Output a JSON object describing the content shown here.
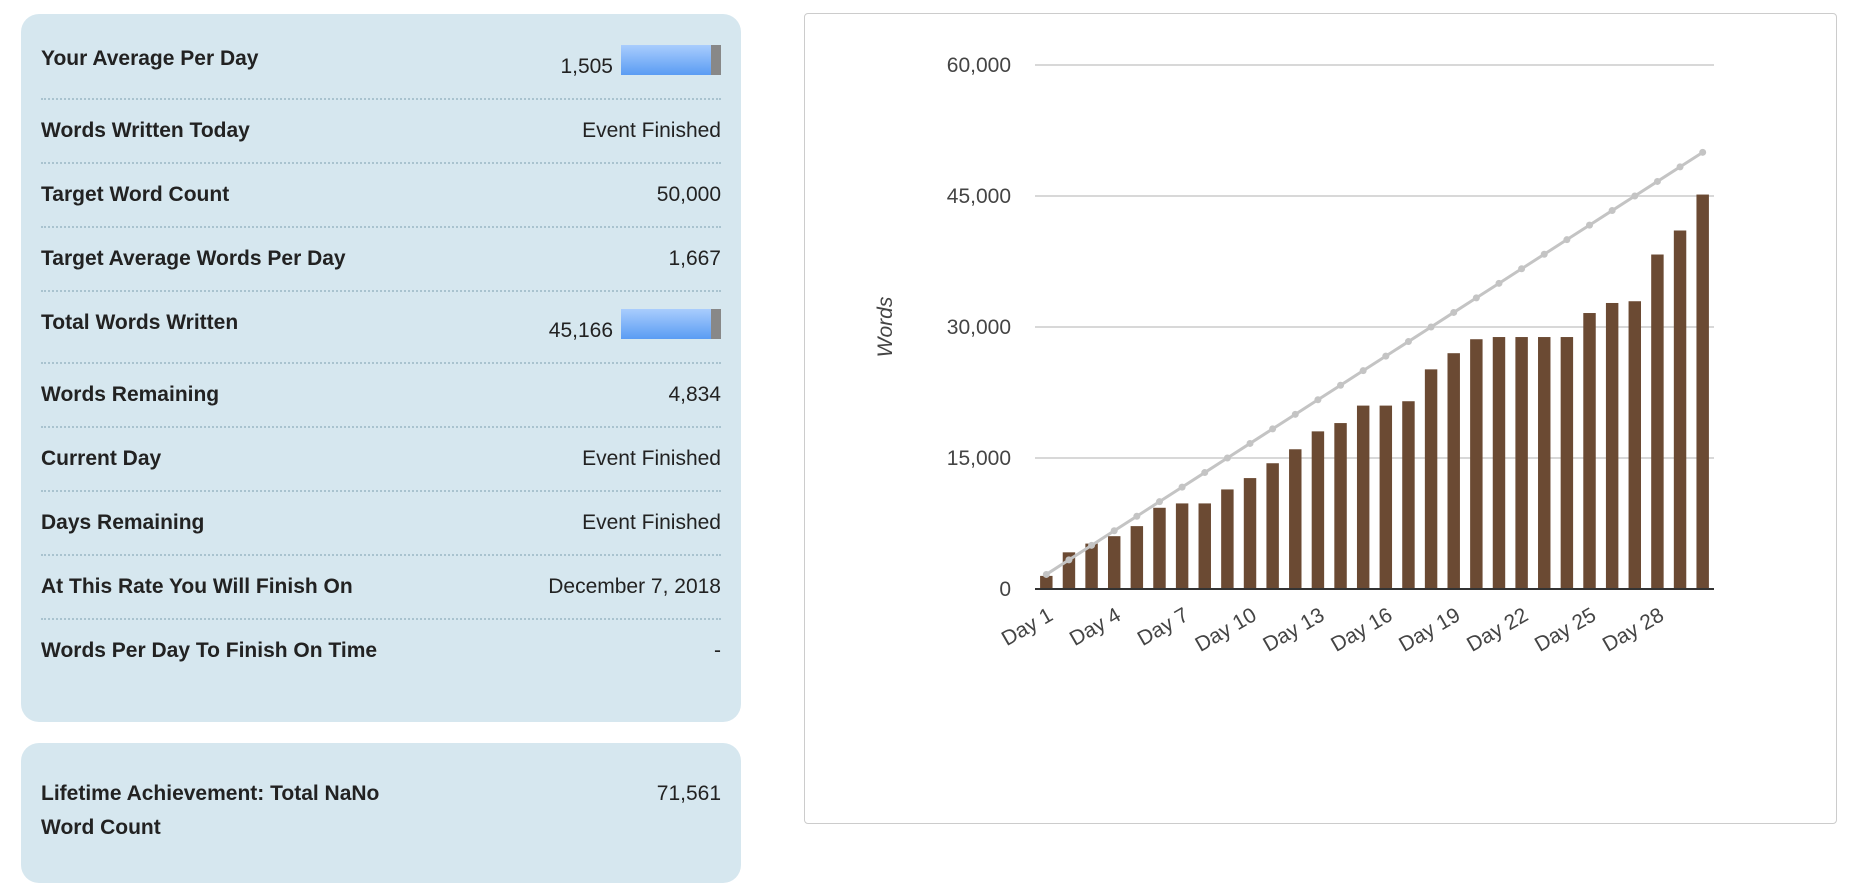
{
  "stats": {
    "rows": [
      {
        "label": "Your Average Per Day",
        "value": "1,505",
        "bar": true
      },
      {
        "label": "Words Written Today",
        "value": "Event Finished"
      },
      {
        "label": "Target Word Count",
        "value": "50,000"
      },
      {
        "label": "Target Average Words Per Day",
        "value": "1,667"
      },
      {
        "label": "Total Words Written",
        "value": "45,166",
        "bar": true
      },
      {
        "label": "Words Remaining",
        "value": "4,834"
      },
      {
        "label": "Current Day",
        "value": "Event Finished"
      },
      {
        "label": "Days Remaining",
        "value": "Event Finished"
      },
      {
        "label": "At This Rate You Will Finish On",
        "value": "December 7, 2018"
      },
      {
        "label": "Words Per Day To Finish On Time",
        "value": "-"
      }
    ]
  },
  "lifetime": {
    "label": "Lifetime Achievement: Total NaNo Word Count",
    "value": "71,561"
  },
  "chart_data": {
    "type": "bar",
    "title": "",
    "xlabel": "",
    "ylabel": "Words",
    "ylim": [
      0,
      60000
    ],
    "yticks": [
      "0",
      "15,000",
      "30,000",
      "45,000",
      "60,000"
    ],
    "ytick_values": [
      0,
      15000,
      30000,
      45000,
      60000
    ],
    "grid": true,
    "categories": [
      "Day 1",
      "Day 2",
      "Day 3",
      "Day 4",
      "Day 5",
      "Day 6",
      "Day 7",
      "Day 8",
      "Day 9",
      "Day 10",
      "Day 11",
      "Day 12",
      "Day 13",
      "Day 14",
      "Day 15",
      "Day 16",
      "Day 17",
      "Day 18",
      "Day 19",
      "Day 20",
      "Day 21",
      "Day 22",
      "Day 23",
      "Day 24",
      "Day 25",
      "Day 26",
      "Day 27",
      "Day 28",
      "Day 29",
      "Day 30"
    ],
    "xtick_labels_shown": [
      "Day 1",
      "Day 4",
      "Day 7",
      "Day 10",
      "Day 13",
      "Day 16",
      "Day 19",
      "Day 22",
      "Day 25",
      "Day 28"
    ],
    "series": [
      {
        "type": "bar",
        "color": "#6b4a33",
        "values": [
          1500,
          4200,
          5200,
          6050,
          7200,
          9300,
          9800,
          9800,
          11400,
          12700,
          14400,
          16000,
          18050,
          19000,
          21000,
          21000,
          21500,
          25150,
          27000,
          28600,
          28850,
          28850,
          28850,
          28850,
          31600,
          32750,
          32950,
          38300,
          41050,
          45166
        ]
      },
      {
        "type": "line",
        "color": "#c4c4c4",
        "values": [
          1667,
          3333,
          5000,
          6667,
          8333,
          10000,
          11667,
          13333,
          15000,
          16667,
          18333,
          20000,
          21667,
          23333,
          25000,
          26667,
          28333,
          30000,
          31667,
          33333,
          35000,
          36667,
          38333,
          40000,
          41667,
          43333,
          45000,
          46667,
          48333,
          50000
        ]
      }
    ]
  }
}
